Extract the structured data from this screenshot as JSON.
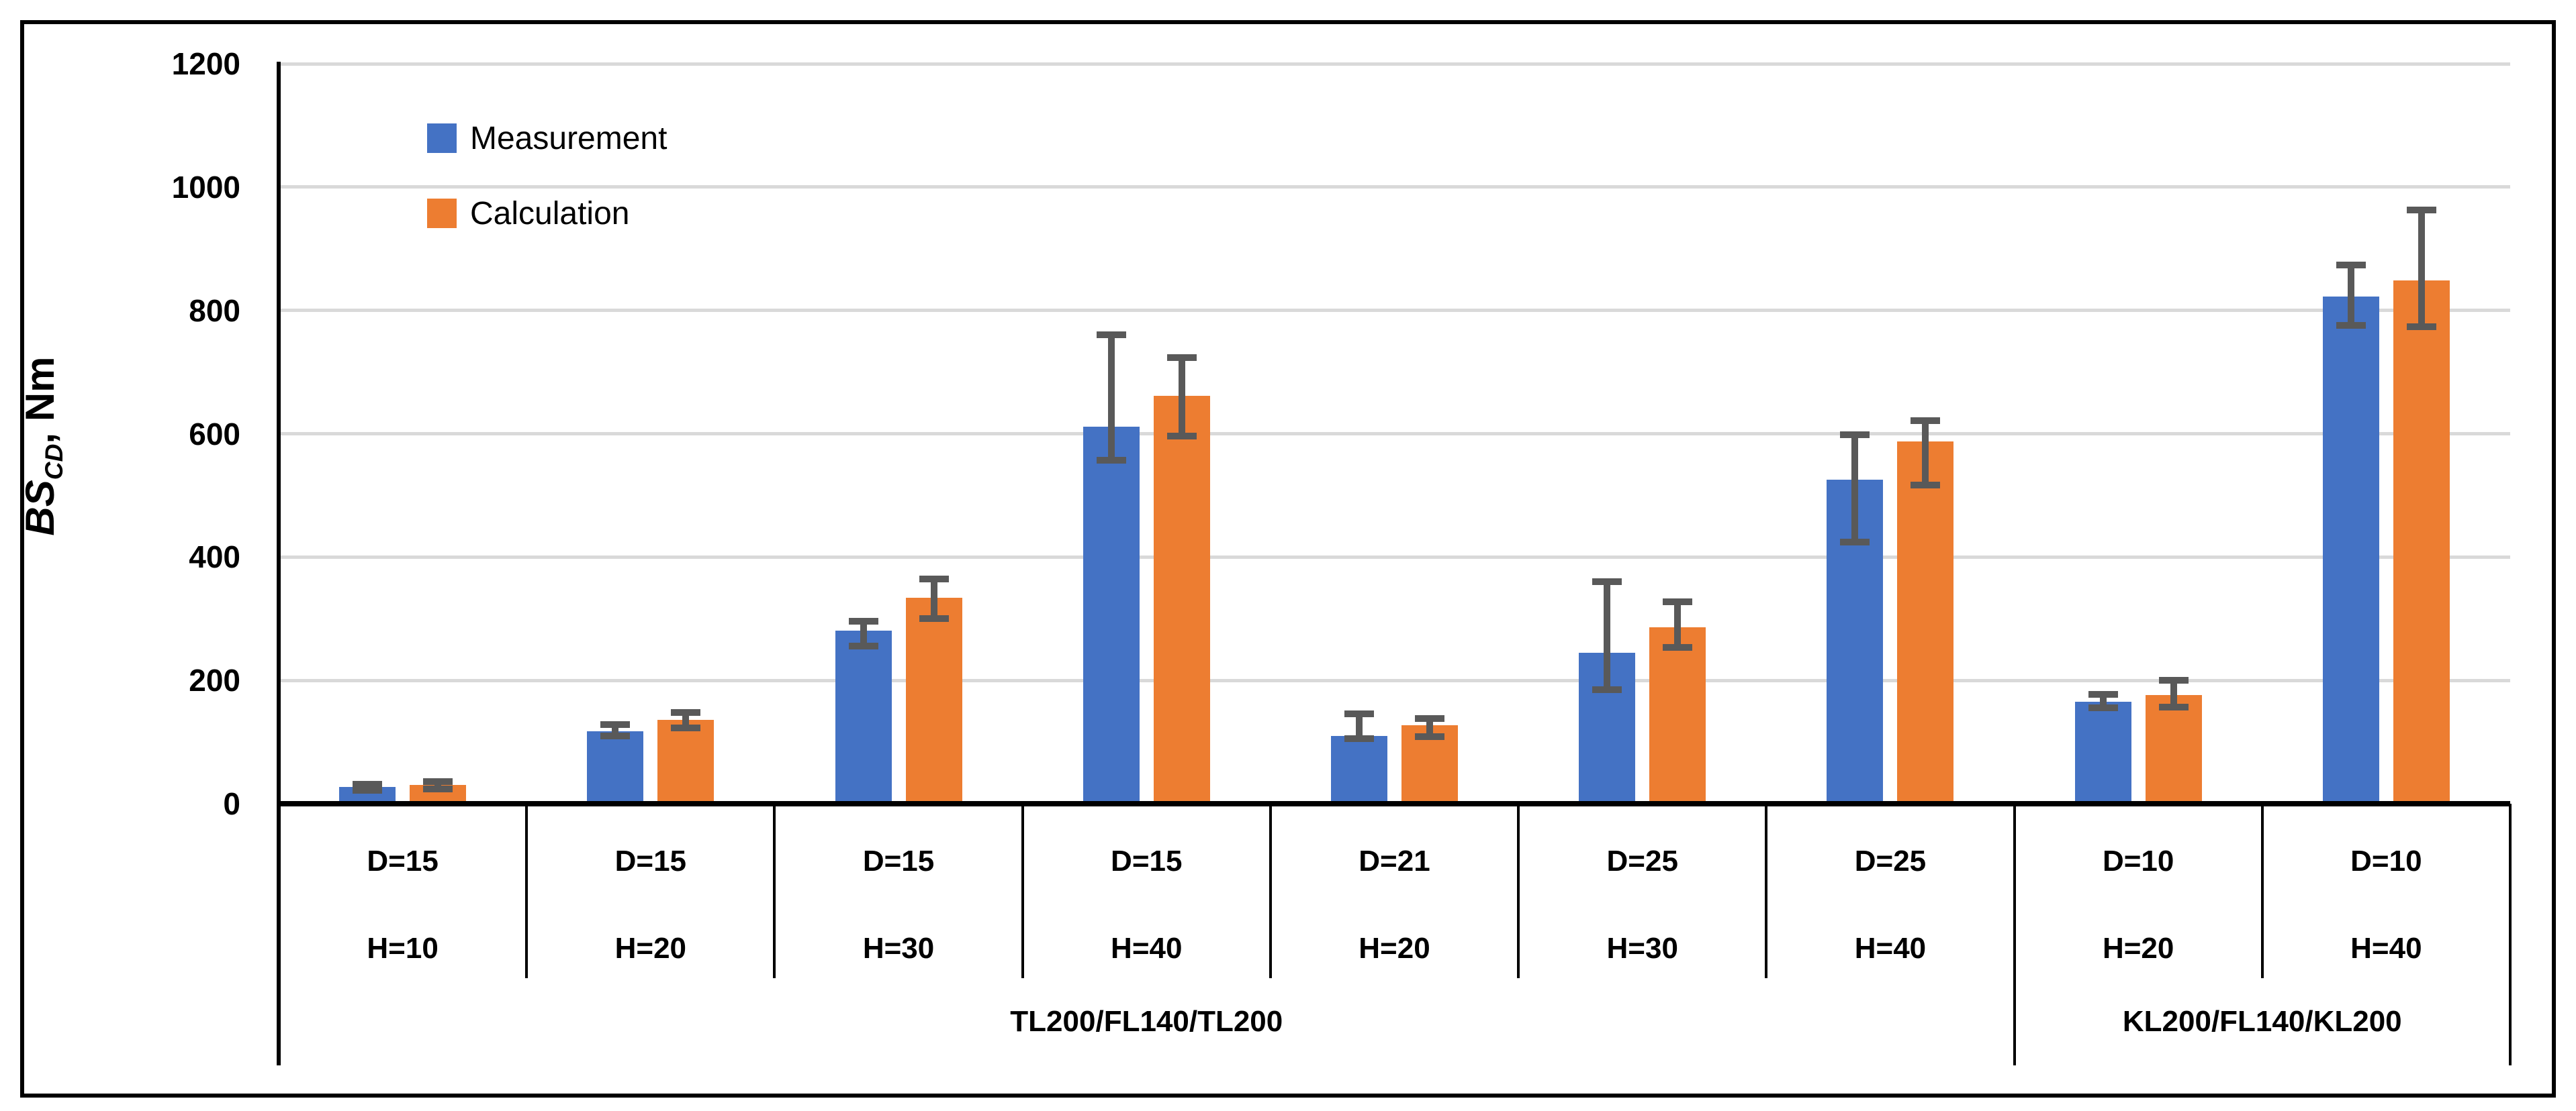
{
  "figure": {
    "background": "#FFFFFF",
    "border_color": "#000000"
  },
  "chart_data": {
    "type": "bar",
    "title": "",
    "ylabel_text": "BS_CD, Nm",
    "ylabel_parts": {
      "bs": "BS",
      "cd": "CD",
      "unit": ", Nm"
    },
    "ylim": [
      0,
      1200
    ],
    "ytick_step": 200,
    "yticks": [
      "0",
      "200",
      "400",
      "600",
      "800",
      "1000",
      "1200"
    ],
    "grid": true,
    "legend_position": "top-left-inside",
    "series": [
      {
        "name": "Measurement",
        "color": "#4472C4",
        "values": [
          27,
          118,
          281,
          611,
          110,
          245,
          525,
          165,
          823
        ],
        "err_up": [
          5,
          10,
          15,
          149,
          36,
          115,
          73,
          12,
          51
        ],
        "err_down": [
          5,
          8,
          25,
          54,
          5,
          60,
          101,
          9,
          47
        ]
      },
      {
        "name": "Calculation",
        "color": "#ED7D31",
        "values": [
          30,
          136,
          334,
          661,
          127,
          286,
          587,
          176,
          849
        ],
        "err_up": [
          6,
          12,
          31,
          62,
          11,
          42,
          34,
          24,
          114
        ],
        "err_down": [
          6,
          13,
          34,
          65,
          18,
          32,
          70,
          19,
          75
        ]
      }
    ],
    "categories": [
      {
        "line1": "D=15",
        "line2": "H=10"
      },
      {
        "line1": "D=15",
        "line2": "H=20"
      },
      {
        "line1": "D=15",
        "line2": "H=30"
      },
      {
        "line1": "D=15",
        "line2": "H=40"
      },
      {
        "line1": "D=21",
        "line2": "H=20"
      },
      {
        "line1": "D=25",
        "line2": "H=30"
      },
      {
        "line1": "D=25",
        "line2": "H=40"
      },
      {
        "line1": "D=10",
        "line2": "H=20"
      },
      {
        "line1": "D=10",
        "line2": "H=40"
      }
    ],
    "group_spans": [
      {
        "label": "TL200/FL140/TL200",
        "col_start": 0,
        "col_count": 7
      },
      {
        "label": "KL200/FL140/KL200",
        "col_start": 7,
        "col_count": 2
      }
    ],
    "colors": {
      "gridline": "#D9D9D9",
      "axis": "#000000",
      "error_bar": "#595959"
    }
  }
}
